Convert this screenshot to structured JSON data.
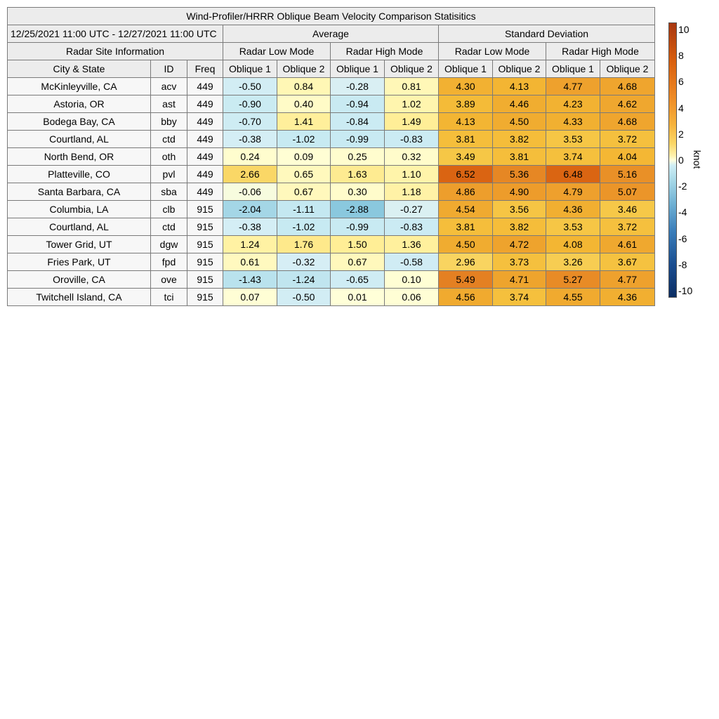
{
  "table": {
    "title": "Wind-Profiler/HRRR Oblique Beam Velocity Comparison Statisitics",
    "period": "12/25/2021 11:00 UTC - 12/27/2021 11:00 UTC",
    "average_label": "Average",
    "stddev_label": "Standard Deviation",
    "site_info_label": "Radar Site Information",
    "low_mode_label": "Radar Low Mode",
    "high_mode_label": "Radar High Mode",
    "col_city": "City & State",
    "col_id": "ID",
    "col_freq": "Freq",
    "col_oblique1": "Oblique 1",
    "col_oblique2": "Oblique 2"
  },
  "chart_data": {
    "type": "table",
    "title": "Wind-Profiler/HRRR Oblique Beam Velocity Comparison Statisitics",
    "period": "12/25/2021 11:00 UTC - 12/27/2021 11:00 UTC",
    "columns": [
      "Average Low Oblique 1",
      "Average Low Oblique 2",
      "Average High Oblique 1",
      "Average High Oblique 2",
      "Std Dev Low Oblique 1",
      "Std Dev Low Oblique 2",
      "Std Dev High Oblique 1",
      "Std Dev High Oblique 2"
    ],
    "rows": [
      {
        "site": "McKinleyville, CA",
        "id": "acv",
        "freq": "449",
        "values": [
          "-0.50",
          "0.84",
          "-0.28",
          "0.81",
          "4.30",
          "4.13",
          "4.77",
          "4.68"
        ]
      },
      {
        "site": "Astoria, OR",
        "id": "ast",
        "freq": "449",
        "values": [
          "-0.90",
          "0.40",
          "-0.94",
          "1.02",
          "3.89",
          "4.46",
          "4.23",
          "4.62"
        ]
      },
      {
        "site": "Bodega Bay, CA",
        "id": "bby",
        "freq": "449",
        "values": [
          "-0.70",
          "1.41",
          "-0.84",
          "1.49",
          "4.13",
          "4.50",
          "4.33",
          "4.68"
        ]
      },
      {
        "site": "Courtland, AL",
        "id": "ctd",
        "freq": "449",
        "values": [
          "-0.38",
          "-1.02",
          "-0.99",
          "-0.83",
          "3.81",
          "3.82",
          "3.53",
          "3.72"
        ]
      },
      {
        "site": "North Bend, OR",
        "id": "oth",
        "freq": "449",
        "values": [
          "0.24",
          "0.09",
          "0.25",
          "0.32",
          "3.49",
          "3.81",
          "3.74",
          "4.04"
        ]
      },
      {
        "site": "Platteville, CO",
        "id": "pvl",
        "freq": "449",
        "values": [
          "2.66",
          "0.65",
          "1.63",
          "1.10",
          "6.52",
          "5.36",
          "6.48",
          "5.16"
        ]
      },
      {
        "site": "Santa Barbara, CA",
        "id": "sba",
        "freq": "449",
        "values": [
          "-0.06",
          "0.67",
          "0.30",
          "1.18",
          "4.86",
          "4.90",
          "4.79",
          "5.07"
        ]
      },
      {
        "site": "Columbia, LA",
        "id": "clb",
        "freq": "915",
        "values": [
          "-2.04",
          "-1.11",
          "-2.88",
          "-0.27",
          "4.54",
          "3.56",
          "4.36",
          "3.46"
        ]
      },
      {
        "site": "Courtland, AL",
        "id": "ctd",
        "freq": "915",
        "values": [
          "-0.38",
          "-1.02",
          "-0.99",
          "-0.83",
          "3.81",
          "3.82",
          "3.53",
          "3.72"
        ]
      },
      {
        "site": "Tower Grid, UT",
        "id": "dgw",
        "freq": "915",
        "values": [
          "1.24",
          "1.76",
          "1.50",
          "1.36",
          "4.50",
          "4.72",
          "4.08",
          "4.61"
        ]
      },
      {
        "site": "Fries Park, UT",
        "id": "fpd",
        "freq": "915",
        "values": [
          "0.61",
          "-0.32",
          "0.67",
          "-0.58",
          "2.96",
          "3.73",
          "3.26",
          "3.67"
        ]
      },
      {
        "site": "Oroville, CA",
        "id": "ove",
        "freq": "915",
        "values": [
          "-1.43",
          "-1.24",
          "-0.65",
          "0.10",
          "5.49",
          "4.71",
          "5.27",
          "4.77"
        ]
      },
      {
        "site": "Twitchell Island, CA",
        "id": "tci",
        "freq": "915",
        "values": [
          "0.07",
          "-0.50",
          "0.01",
          "0.06",
          "4.56",
          "3.74",
          "4.55",
          "4.36"
        ]
      }
    ],
    "colorbar": {
      "label": "knot",
      "range": [
        -10,
        10
      ],
      "ticks": [
        "10",
        "8",
        "6",
        "4",
        "2",
        "0",
        "-2",
        "-4",
        "-6",
        "-8",
        "-10"
      ]
    }
  }
}
